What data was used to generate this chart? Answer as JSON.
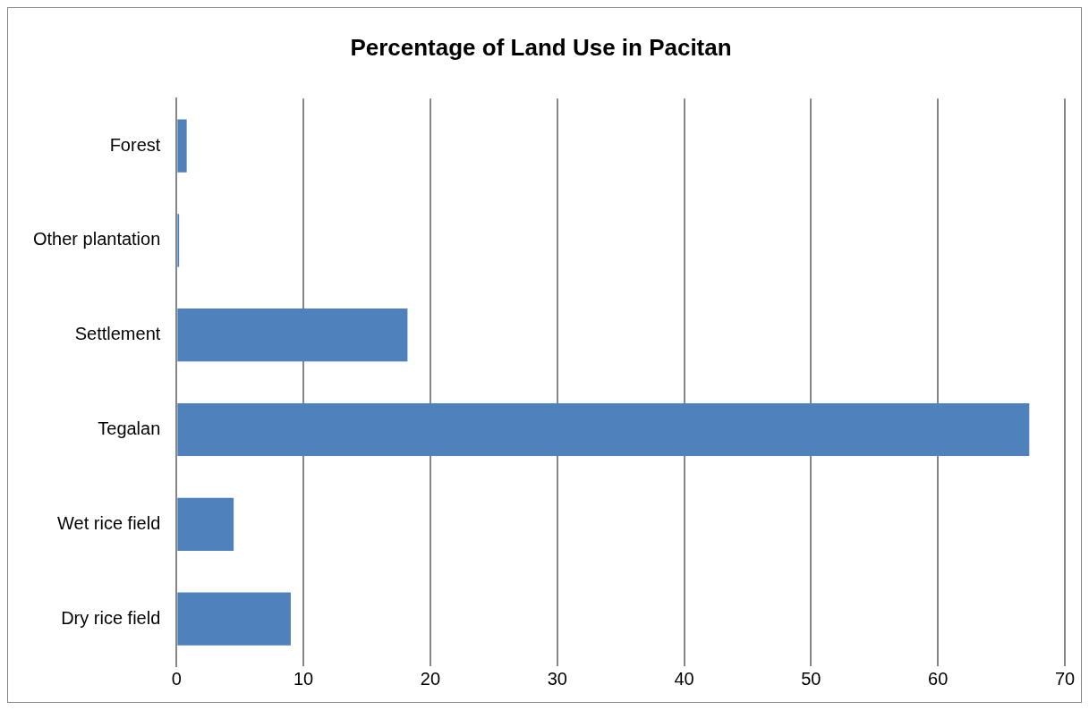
{
  "chart_data": {
    "type": "bar",
    "orientation": "horizontal",
    "title": "Percentage of Land Use in Pacitan",
    "categories": [
      "Forest",
      "Other plantation",
      "Settlement",
      "Tegalan",
      "Wet rice field",
      "Dry rice field"
    ],
    "values": [
      0.8,
      0.2,
      18.2,
      67.2,
      4.5,
      9.0
    ],
    "color": "#4f81bd",
    "xlim": [
      0,
      70
    ],
    "xticks": [
      0,
      10,
      20,
      30,
      40,
      50,
      60,
      70
    ],
    "grid": "x",
    "legend": false
  }
}
